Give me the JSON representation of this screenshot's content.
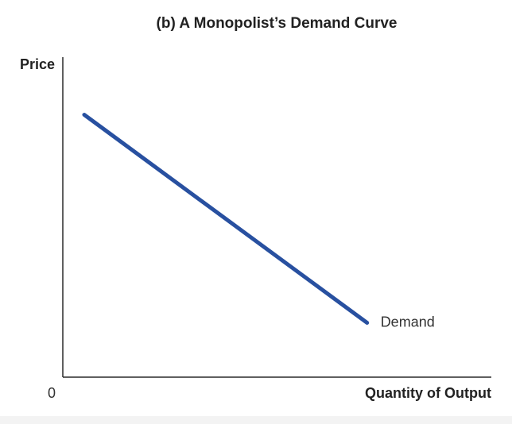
{
  "chart_data": {
    "type": "line",
    "title": "(b) A Monopolist’s Demand Curve",
    "xlabel": "Quantity of Output",
    "ylabel": "Price",
    "origin_label": "0",
    "xlim": [
      0,
      100
    ],
    "ylim": [
      0,
      100
    ],
    "grid": false,
    "legend": "none",
    "series": [
      {
        "name": "Demand",
        "color": "#2850a0",
        "x": [
          5,
          71
        ],
        "y": [
          82,
          17
        ]
      }
    ]
  }
}
